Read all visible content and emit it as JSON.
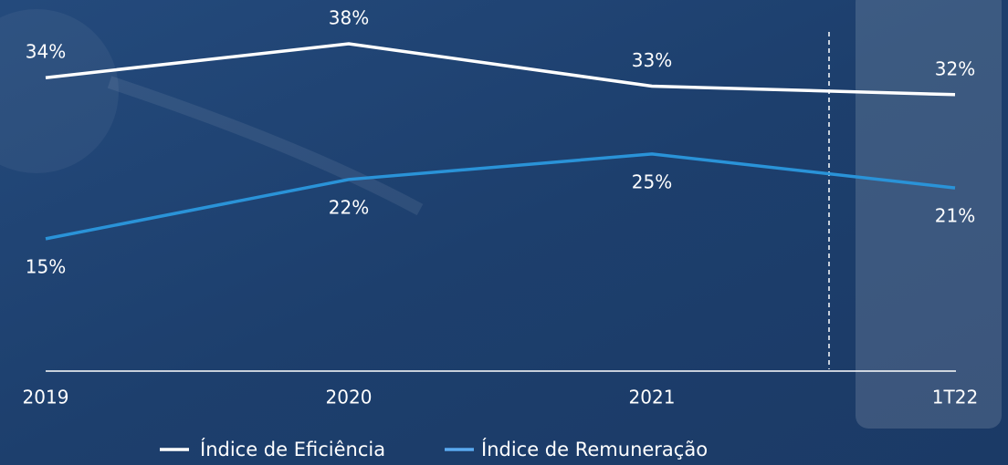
{
  "chart_data": {
    "type": "line",
    "categories": [
      "2019",
      "2020",
      "2021",
      "1T22"
    ],
    "series": [
      {
        "name": "Índice de Eficiência",
        "color": "#ffffff",
        "values": [
          34,
          38,
          33,
          32
        ],
        "value_labels": [
          "34%",
          "38%",
          "33%",
          "32%"
        ]
      },
      {
        "name": "Índice de Remuneração",
        "color": "#2a93d8",
        "values": [
          15,
          22,
          25,
          21
        ],
        "value_labels": [
          "15%",
          "22%",
          "25%",
          "21%"
        ]
      }
    ]
  }
}
